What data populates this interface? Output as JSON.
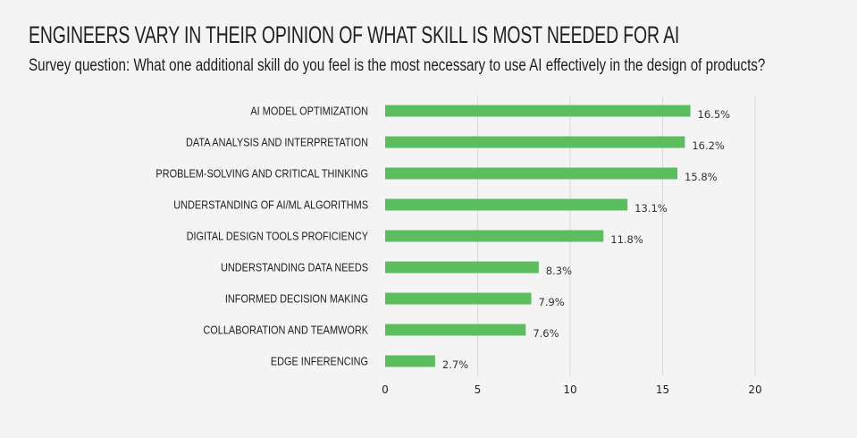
{
  "title": "ENGINEERS VARY IN THEIR OPINION OF WHAT SKILL IS MOST NEEDED FOR AI",
  "subtitle": "Survey question: What one additional skill do you feel is the most necessary to use AI effectively in the design of products?",
  "colors": {
    "bar": "#5cbd5f",
    "grid": "#d9d9d9",
    "background": "#f4f4f4"
  },
  "chart_data": {
    "type": "bar",
    "orientation": "horizontal",
    "title": "ENGINEERS VARY IN THEIR OPINION OF WHAT SKILL IS MOST NEEDED FOR AI",
    "subtitle": "Survey question: What one additional skill do you feel is the most necessary to use AI effectively in the design of products?",
    "categories": [
      "AI MODEL OPTIMIZATION",
      "DATA ANALYSIS AND INTERPRETATION",
      "PROBLEM-SOLVING AND CRITICAL THINKING",
      "UNDERSTANDING OF AI/ML ALGORITHMS",
      "DIGITAL DESIGN TOOLS PROFICIENCY",
      "UNDERSTANDING DATA NEEDS",
      "INFORMED DECISION MAKING",
      "COLLABORATION AND TEAMWORK",
      "EDGE INFERENCING"
    ],
    "values": [
      16.5,
      16.2,
      15.8,
      13.1,
      11.8,
      8.3,
      7.9,
      7.6,
      2.7
    ],
    "value_labels": [
      "16.5%",
      "16.2%",
      "15.8%",
      "13.1%",
      "11.8%",
      "8.3%",
      "7.9%",
      "7.6%",
      "2.7%"
    ],
    "xlim": [
      0,
      20
    ],
    "xticks": [
      0,
      5,
      10,
      15,
      20
    ],
    "xlabel": "",
    "ylabel": "",
    "grid": true,
    "legend": "none"
  }
}
